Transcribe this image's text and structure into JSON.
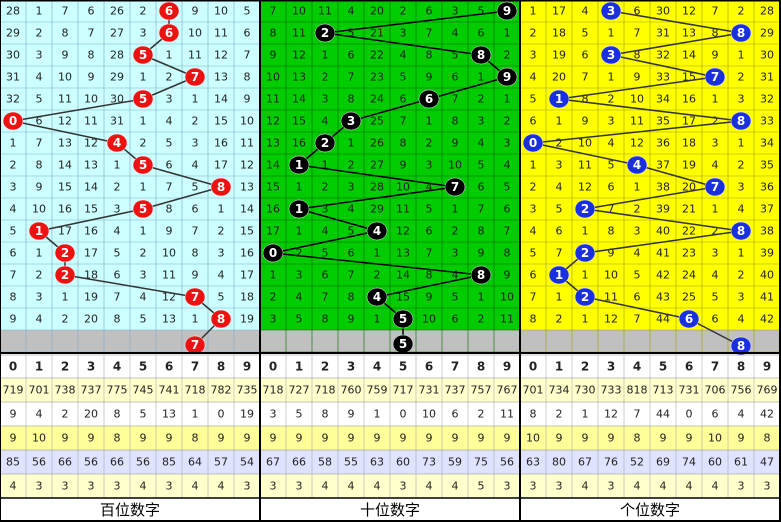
{
  "panels": [
    {
      "label": "百位数字",
      "digits": [
        "0",
        "1",
        "2",
        "3",
        "4",
        "5",
        "6",
        "7",
        "8",
        "9"
      ],
      "rows": [
        [
          28,
          1,
          7,
          6,
          26,
          2,
          {
            "ball": 6
          },
          9,
          10,
          5
        ],
        [
          29,
          2,
          8,
          7,
          27,
          3,
          {
            "ball": 6
          },
          10,
          11,
          6
        ],
        [
          30,
          3,
          9,
          8,
          28,
          {
            "ball": 5
          },
          1,
          11,
          12,
          7
        ],
        [
          31,
          4,
          10,
          9,
          29,
          1,
          2,
          {
            "ball": 7
          },
          13,
          8
        ],
        [
          32,
          5,
          11,
          10,
          30,
          {
            "ball": 5
          },
          3,
          1,
          14,
          9
        ],
        [
          {
            "ball": 0
          },
          6,
          12,
          11,
          31,
          1,
          4,
          2,
          15,
          10
        ],
        [
          1,
          7,
          13,
          12,
          {
            "ball": 4
          },
          2,
          5,
          3,
          16,
          11
        ],
        [
          2,
          8,
          14,
          13,
          1,
          {
            "ball": 5
          },
          6,
          4,
          17,
          12
        ],
        [
          3,
          9,
          15,
          14,
          2,
          1,
          7,
          5,
          {
            "ball": 8
          },
          13
        ],
        [
          4,
          10,
          16,
          15,
          3,
          {
            "ball": 5
          },
          8,
          6,
          1,
          14
        ],
        [
          5,
          {
            "ball": 1
          },
          17,
          16,
          4,
          1,
          9,
          7,
          2,
          15
        ],
        [
          6,
          1,
          {
            "ball": 2
          },
          17,
          5,
          2,
          10,
          8,
          3,
          16
        ],
        [
          7,
          2,
          {
            "ball": 2
          },
          18,
          6,
          3,
          11,
          9,
          4,
          17
        ],
        [
          8,
          3,
          1,
          19,
          7,
          4,
          12,
          {
            "ball": 7
          },
          5,
          18
        ],
        [
          9,
          4,
          2,
          20,
          8,
          5,
          13,
          1,
          {
            "ball": 8
          },
          19
        ]
      ],
      "next": [
        null,
        null,
        null,
        null,
        null,
        null,
        null,
        {
          "ball": 7
        },
        null,
        null
      ],
      "stats": [
        [
          719,
          701,
          738,
          737,
          775,
          745,
          741,
          718,
          782,
          735
        ],
        [
          9,
          4,
          2,
          20,
          8,
          5,
          13,
          1,
          0,
          19
        ],
        [
          9,
          10,
          9,
          9,
          8,
          9,
          9,
          8,
          9,
          9
        ],
        [
          85,
          56,
          66,
          56,
          66,
          56,
          85,
          64,
          57,
          54
        ],
        [
          4,
          3,
          3,
          3,
          3,
          4,
          3,
          4,
          4,
          3
        ]
      ]
    },
    {
      "label": "十位数字",
      "digits": [
        "0",
        "1",
        "2",
        "3",
        "4",
        "5",
        "6",
        "7",
        "8",
        "9"
      ],
      "rows": [
        [
          7,
          10,
          11,
          4,
          20,
          2,
          6,
          3,
          5,
          {
            "ball": 9
          }
        ],
        [
          8,
          11,
          {
            "ball": 2
          },
          5,
          21,
          3,
          7,
          4,
          6,
          1
        ],
        [
          9,
          12,
          1,
          6,
          22,
          4,
          8,
          5,
          {
            "ball": 8
          },
          2
        ],
        [
          10,
          13,
          2,
          7,
          23,
          5,
          9,
          6,
          1,
          {
            "ball": 9
          }
        ],
        [
          11,
          14,
          3,
          8,
          24,
          6,
          {
            "ball": 6
          },
          7,
          2,
          1
        ],
        [
          12,
          15,
          4,
          {
            "ball": 3
          },
          25,
          7,
          1,
          8,
          3,
          2
        ],
        [
          13,
          16,
          {
            "ball": 2
          },
          1,
          26,
          8,
          2,
          9,
          4,
          3
        ],
        [
          14,
          {
            "ball": 1
          },
          1,
          2,
          27,
          9,
          3,
          10,
          5,
          4
        ],
        [
          15,
          1,
          2,
          3,
          28,
          10,
          4,
          {
            "ball": 7
          },
          6,
          5
        ],
        [
          16,
          {
            "ball": 1
          },
          3,
          4,
          29,
          11,
          5,
          1,
          7,
          6
        ],
        [
          17,
          1,
          4,
          5,
          {
            "ball": 4
          },
          12,
          6,
          2,
          8,
          7
        ],
        [
          {
            "ball": 0
          },
          2,
          5,
          6,
          1,
          13,
          7,
          3,
          9,
          8
        ],
        [
          1,
          3,
          6,
          7,
          2,
          14,
          8,
          4,
          {
            "ball": 8
          },
          9
        ],
        [
          2,
          4,
          7,
          8,
          {
            "ball": 4
          },
          15,
          9,
          5,
          1,
          10
        ],
        [
          3,
          5,
          8,
          9,
          1,
          {
            "ball": 5
          },
          10,
          6,
          2,
          11
        ]
      ],
      "next": [
        null,
        null,
        null,
        null,
        null,
        {
          "ball": 5
        },
        null,
        null,
        null,
        null
      ],
      "stats": [
        [
          718,
          727,
          718,
          760,
          759,
          717,
          731,
          737,
          757,
          767
        ],
        [
          3,
          5,
          8,
          9,
          1,
          0,
          10,
          6,
          2,
          11
        ],
        [
          9,
          9,
          9,
          9,
          9,
          9,
          9,
          9,
          9,
          9
        ],
        [
          67,
          66,
          58,
          55,
          63,
          60,
          73,
          59,
          75,
          56
        ],
        [
          3,
          3,
          4,
          4,
          4,
          3,
          4,
          4,
          5,
          3
        ]
      ]
    },
    {
      "label": "个位数字",
      "digits": [
        "0",
        "1",
        "2",
        "3",
        "4",
        "5",
        "6",
        "7",
        "8",
        "9"
      ],
      "rows": [
        [
          1,
          17,
          4,
          {
            "ball": 3
          },
          6,
          30,
          12,
          7,
          2,
          28
        ],
        [
          2,
          18,
          5,
          1,
          7,
          31,
          13,
          8,
          {
            "ball": 8
          },
          29
        ],
        [
          3,
          19,
          6,
          {
            "ball": 3
          },
          8,
          32,
          14,
          9,
          1,
          30
        ],
        [
          4,
          20,
          7,
          1,
          9,
          33,
          15,
          {
            "ball": 7
          },
          2,
          31
        ],
        [
          5,
          {
            "ball": 1
          },
          8,
          2,
          10,
          34,
          16,
          1,
          3,
          32
        ],
        [
          6,
          1,
          9,
          3,
          11,
          35,
          17,
          2,
          {
            "ball": 8
          },
          33
        ],
        [
          {
            "ball": 0
          },
          2,
          10,
          4,
          12,
          36,
          18,
          3,
          1,
          34
        ],
        [
          1,
          3,
          11,
          5,
          {
            "ball": 4
          },
          37,
          19,
          4,
          2,
          35
        ],
        [
          2,
          4,
          12,
          6,
          1,
          38,
          20,
          {
            "ball": 7
          },
          3,
          36
        ],
        [
          3,
          5,
          {
            "ball": 2
          },
          7,
          2,
          39,
          21,
          1,
          4,
          37
        ],
        [
          4,
          6,
          1,
          8,
          3,
          40,
          22,
          2,
          {
            "ball": 8
          },
          38
        ],
        [
          5,
          7,
          {
            "ball": 2
          },
          9,
          4,
          41,
          23,
          3,
          1,
          39
        ],
        [
          6,
          {
            "ball": 1
          },
          1,
          10,
          5,
          42,
          24,
          4,
          2,
          40
        ],
        [
          7,
          1,
          {
            "ball": 2
          },
          11,
          6,
          43,
          25,
          5,
          3,
          41
        ],
        [
          8,
          2,
          1,
          12,
          7,
          44,
          {
            "ball": 6
          },
          6,
          4,
          42
        ]
      ],
      "next": [
        null,
        null,
        null,
        null,
        null,
        null,
        null,
        null,
        {
          "ball": 8
        },
        null
      ],
      "stats": [
        [
          701,
          734,
          730,
          733,
          818,
          713,
          731,
          706,
          756,
          769
        ],
        [
          8,
          2,
          1,
          12,
          7,
          44,
          0,
          6,
          4,
          42
        ],
        [
          10,
          9,
          9,
          9,
          8,
          9,
          9,
          10,
          9,
          8
        ],
        [
          63,
          80,
          67,
          76,
          52,
          69,
          74,
          60,
          61,
          47
        ],
        [
          3,
          3,
          4,
          3,
          4,
          4,
          4,
          4,
          3,
          3
        ]
      ]
    }
  ]
}
